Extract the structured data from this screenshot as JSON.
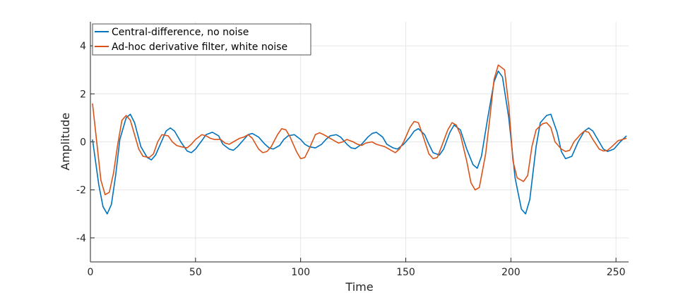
{
  "chart_data": {
    "type": "line",
    "xlabel": "Time",
    "ylabel": "Amplitude",
    "xlim": [
      0,
      256
    ],
    "ylim": [
      -5,
      5
    ],
    "xticks": [
      0,
      50,
      100,
      150,
      200,
      250
    ],
    "yticks": [
      -4,
      -2,
      0,
      2,
      4
    ],
    "grid": true,
    "legend_position": "top-left",
    "series": [
      {
        "name": "Central-difference, no noise",
        "color": "#0072BD",
        "x": [
          1,
          4,
          6,
          8,
          10,
          12,
          14,
          17,
          19,
          21,
          24,
          27,
          29,
          31,
          34,
          36,
          38,
          40,
          43,
          46,
          48,
          50,
          53,
          55,
          58,
          61,
          63,
          66,
          68,
          70,
          73,
          75,
          77,
          80,
          83,
          85,
          87,
          90,
          92,
          94,
          97,
          100,
          102,
          104,
          107,
          110,
          112,
          114,
          117,
          119,
          122,
          124,
          126,
          129,
          132,
          134,
          136,
          139,
          141,
          144,
          146,
          149,
          152,
          154,
          156,
          159,
          161,
          163,
          166,
          168,
          171,
          173,
          176,
          179,
          182,
          184,
          186,
          189,
          192,
          194,
          196,
          199,
          202,
          205,
          207,
          209,
          212,
          214,
          217,
          219,
          222,
          224,
          226,
          229,
          232,
          235,
          237,
          239,
          242,
          244,
          246,
          249,
          252,
          255
        ],
        "y": [
          0.1,
          -1.8,
          -2.7,
          -3.0,
          -2.6,
          -1.4,
          0.1,
          1.0,
          1.15,
          0.8,
          -0.2,
          -0.65,
          -0.75,
          -0.55,
          0.05,
          0.45,
          0.58,
          0.45,
          0.0,
          -0.38,
          -0.45,
          -0.3,
          0.05,
          0.3,
          0.4,
          0.25,
          -0.1,
          -0.3,
          -0.35,
          -0.2,
          0.1,
          0.3,
          0.35,
          0.2,
          -0.1,
          -0.25,
          -0.3,
          -0.15,
          0.1,
          0.25,
          0.3,
          0.1,
          -0.1,
          -0.2,
          -0.25,
          -0.1,
          0.1,
          0.25,
          0.3,
          0.2,
          -0.1,
          -0.25,
          -0.28,
          -0.1,
          0.2,
          0.35,
          0.4,
          0.2,
          -0.1,
          -0.25,
          -0.3,
          -0.1,
          0.2,
          0.45,
          0.55,
          0.3,
          -0.1,
          -0.45,
          -0.55,
          -0.3,
          0.4,
          0.7,
          0.5,
          -0.3,
          -0.95,
          -1.1,
          -0.6,
          1.0,
          2.5,
          2.95,
          2.7,
          1.0,
          -1.5,
          -2.8,
          -3.0,
          -2.4,
          -0.2,
          0.8,
          1.1,
          1.15,
          0.4,
          -0.4,
          -0.7,
          -0.6,
          0.0,
          0.45,
          0.58,
          0.45,
          0.0,
          -0.3,
          -0.4,
          -0.3,
          0.0,
          0.25
        ]
      },
      {
        "name": "Ad-hoc derivative filter, white noise",
        "color": "#D95319",
        "x": [
          1,
          3,
          5,
          7,
          9,
          11,
          13,
          15,
          17,
          19,
          21,
          23,
          25,
          28,
          30,
          32,
          34,
          37,
          39,
          41,
          43,
          46,
          48,
          50,
          53,
          55,
          57,
          59,
          62,
          64,
          66,
          68,
          71,
          73,
          75,
          77,
          80,
          82,
          84,
          86,
          89,
          91,
          93,
          95,
          98,
          100,
          102,
          104,
          107,
          109,
          111,
          113,
          116,
          118,
          120,
          122,
          125,
          127,
          129,
          131,
          134,
          136,
          138,
          140,
          143,
          145,
          147,
          149,
          152,
          154,
          156,
          158,
          161,
          163,
          165,
          167,
          170,
          172,
          174,
          176,
          179,
          181,
          183,
          185,
          188,
          190,
          192,
          194,
          197,
          199,
          201,
          203,
          206,
          208,
          210,
          212,
          215,
          217,
          219,
          221,
          224,
          226,
          228,
          230,
          233,
          235,
          237,
          239,
          242,
          244,
          246,
          248,
          251,
          253,
          255
        ],
        "y": [
          1.6,
          0.0,
          -1.6,
          -2.2,
          -2.1,
          -1.3,
          -0.1,
          0.9,
          1.1,
          0.9,
          0.3,
          -0.3,
          -0.6,
          -0.65,
          -0.5,
          0.0,
          0.3,
          0.25,
          0.0,
          -0.15,
          -0.2,
          -0.25,
          -0.1,
          0.1,
          0.3,
          0.25,
          0.15,
          0.1,
          0.1,
          -0.05,
          -0.1,
          0.0,
          0.15,
          0.2,
          0.3,
          0.15,
          -0.3,
          -0.45,
          -0.4,
          -0.2,
          0.3,
          0.55,
          0.5,
          0.2,
          -0.4,
          -0.7,
          -0.65,
          -0.3,
          0.3,
          0.38,
          0.3,
          0.2,
          0.05,
          -0.05,
          0.0,
          0.1,
          0.0,
          -0.1,
          -0.15,
          -0.05,
          0.0,
          -0.1,
          -0.15,
          -0.2,
          -0.35,
          -0.45,
          -0.3,
          0.0,
          0.6,
          0.85,
          0.8,
          0.3,
          -0.5,
          -0.7,
          -0.65,
          -0.2,
          0.5,
          0.8,
          0.7,
          0.3,
          -0.8,
          -1.7,
          -2.0,
          -1.9,
          -0.5,
          1.0,
          2.6,
          3.2,
          3.0,
          1.5,
          -0.8,
          -1.5,
          -1.65,
          -1.4,
          -0.2,
          0.5,
          0.75,
          0.8,
          0.6,
          0.0,
          -0.3,
          -0.4,
          -0.35,
          0.0,
          0.3,
          0.45,
          0.4,
          0.1,
          -0.3,
          -0.38,
          -0.35,
          -0.2,
          0.05,
          0.1,
          0.15
        ]
      }
    ]
  }
}
